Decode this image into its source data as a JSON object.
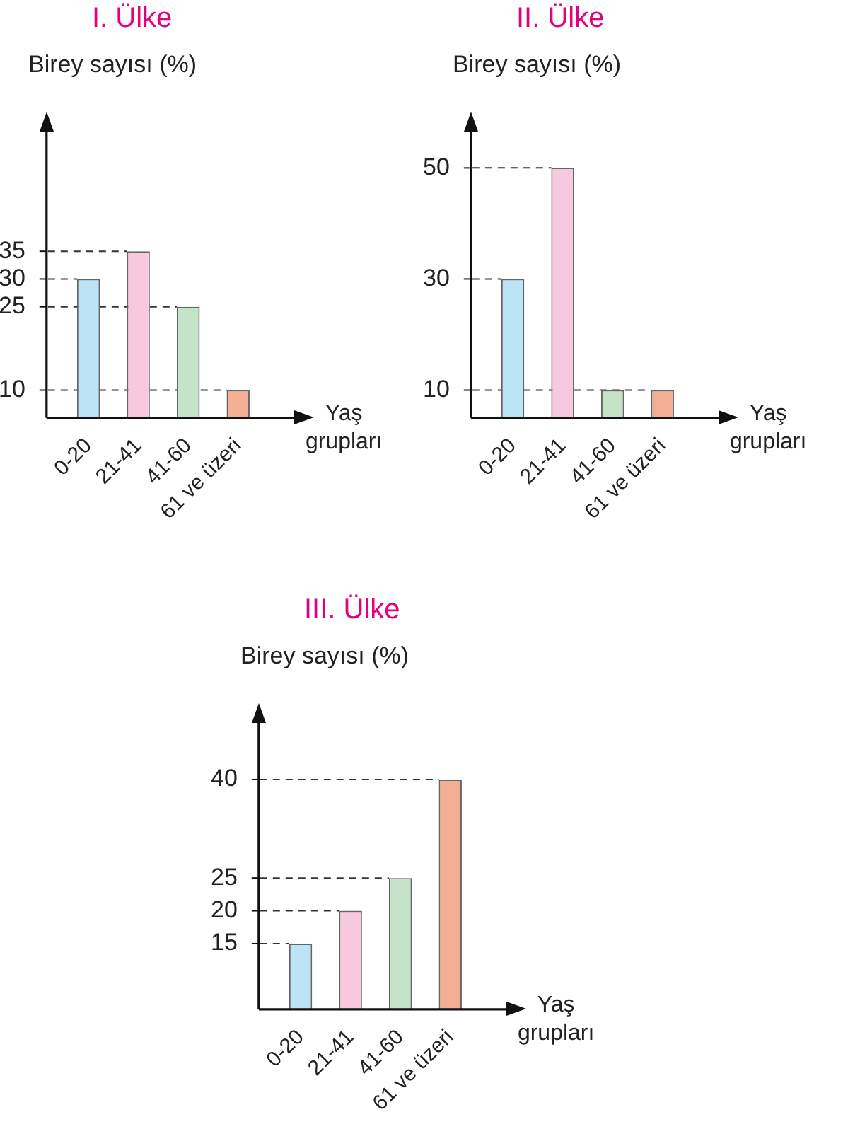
{
  "chart_data": [
    {
      "type": "bar",
      "title": "I. Ülke",
      "ylabel": "Birey sayısı (%)",
      "xlabel": "Yaş grupları",
      "categories": [
        "0-20",
        "21-41",
        "41-60",
        "61 ve üzeri"
      ],
      "values": [
        30,
        35,
        25,
        10
      ],
      "colors": [
        "#bde3f7",
        "#f8c8df",
        "#c5e3c8",
        "#f4ae93"
      ],
      "ylim": [
        5,
        57
      ],
      "yticks": [
        10,
        25,
        30,
        35
      ],
      "ref_lines": [
        {
          "axis": "y",
          "value": 10,
          "line_style": "dashed"
        },
        {
          "axis": "y",
          "value": 25,
          "line_style": "dashed"
        },
        {
          "axis": "y",
          "value": 30,
          "line_style": "dashed"
        },
        {
          "axis": "y",
          "value": 35,
          "line_style": "dashed"
        }
      ]
    },
    {
      "type": "bar",
      "title": "II. Ülke",
      "ylabel": "Birey sayısı (%)",
      "xlabel": "Yaş grupları",
      "categories": [
        "0-20",
        "21-41",
        "41-60",
        "61 ve üzeri"
      ],
      "values": [
        30,
        50,
        10,
        10
      ],
      "colors": [
        "#bde3f7",
        "#f8c8df",
        "#c5e3c8",
        "#f4ae93"
      ],
      "ylim": [
        5,
        57
      ],
      "yticks": [
        10,
        30,
        50
      ],
      "ref_lines": [
        {
          "axis": "y",
          "value": 10,
          "line_style": "dashed"
        },
        {
          "axis": "y",
          "value": 30,
          "line_style": "dashed"
        },
        {
          "axis": "y",
          "value": 50,
          "line_style": "dashed"
        }
      ]
    },
    {
      "type": "bar",
      "title": "III. Ülke",
      "ylabel": "Birey sayısı (%)",
      "xlabel": "Yaş grupları",
      "categories": [
        "0-20",
        "21-41",
        "41-60",
        "61 ve üzeri"
      ],
      "values": [
        15,
        20,
        25,
        40
      ],
      "colors": [
        "#bde3f7",
        "#f8c8df",
        "#c5e3c8",
        "#f4ae93"
      ],
      "ylim": [
        5,
        49
      ],
      "yticks": [
        15,
        20,
        25,
        40
      ],
      "ref_lines": [
        {
          "axis": "y",
          "value": 15,
          "line_style": "dashed"
        },
        {
          "axis": "y",
          "value": 20,
          "line_style": "dashed"
        },
        {
          "axis": "y",
          "value": 25,
          "line_style": "dashed"
        },
        {
          "axis": "y",
          "value": 40,
          "line_style": "dashed"
        }
      ]
    }
  ]
}
